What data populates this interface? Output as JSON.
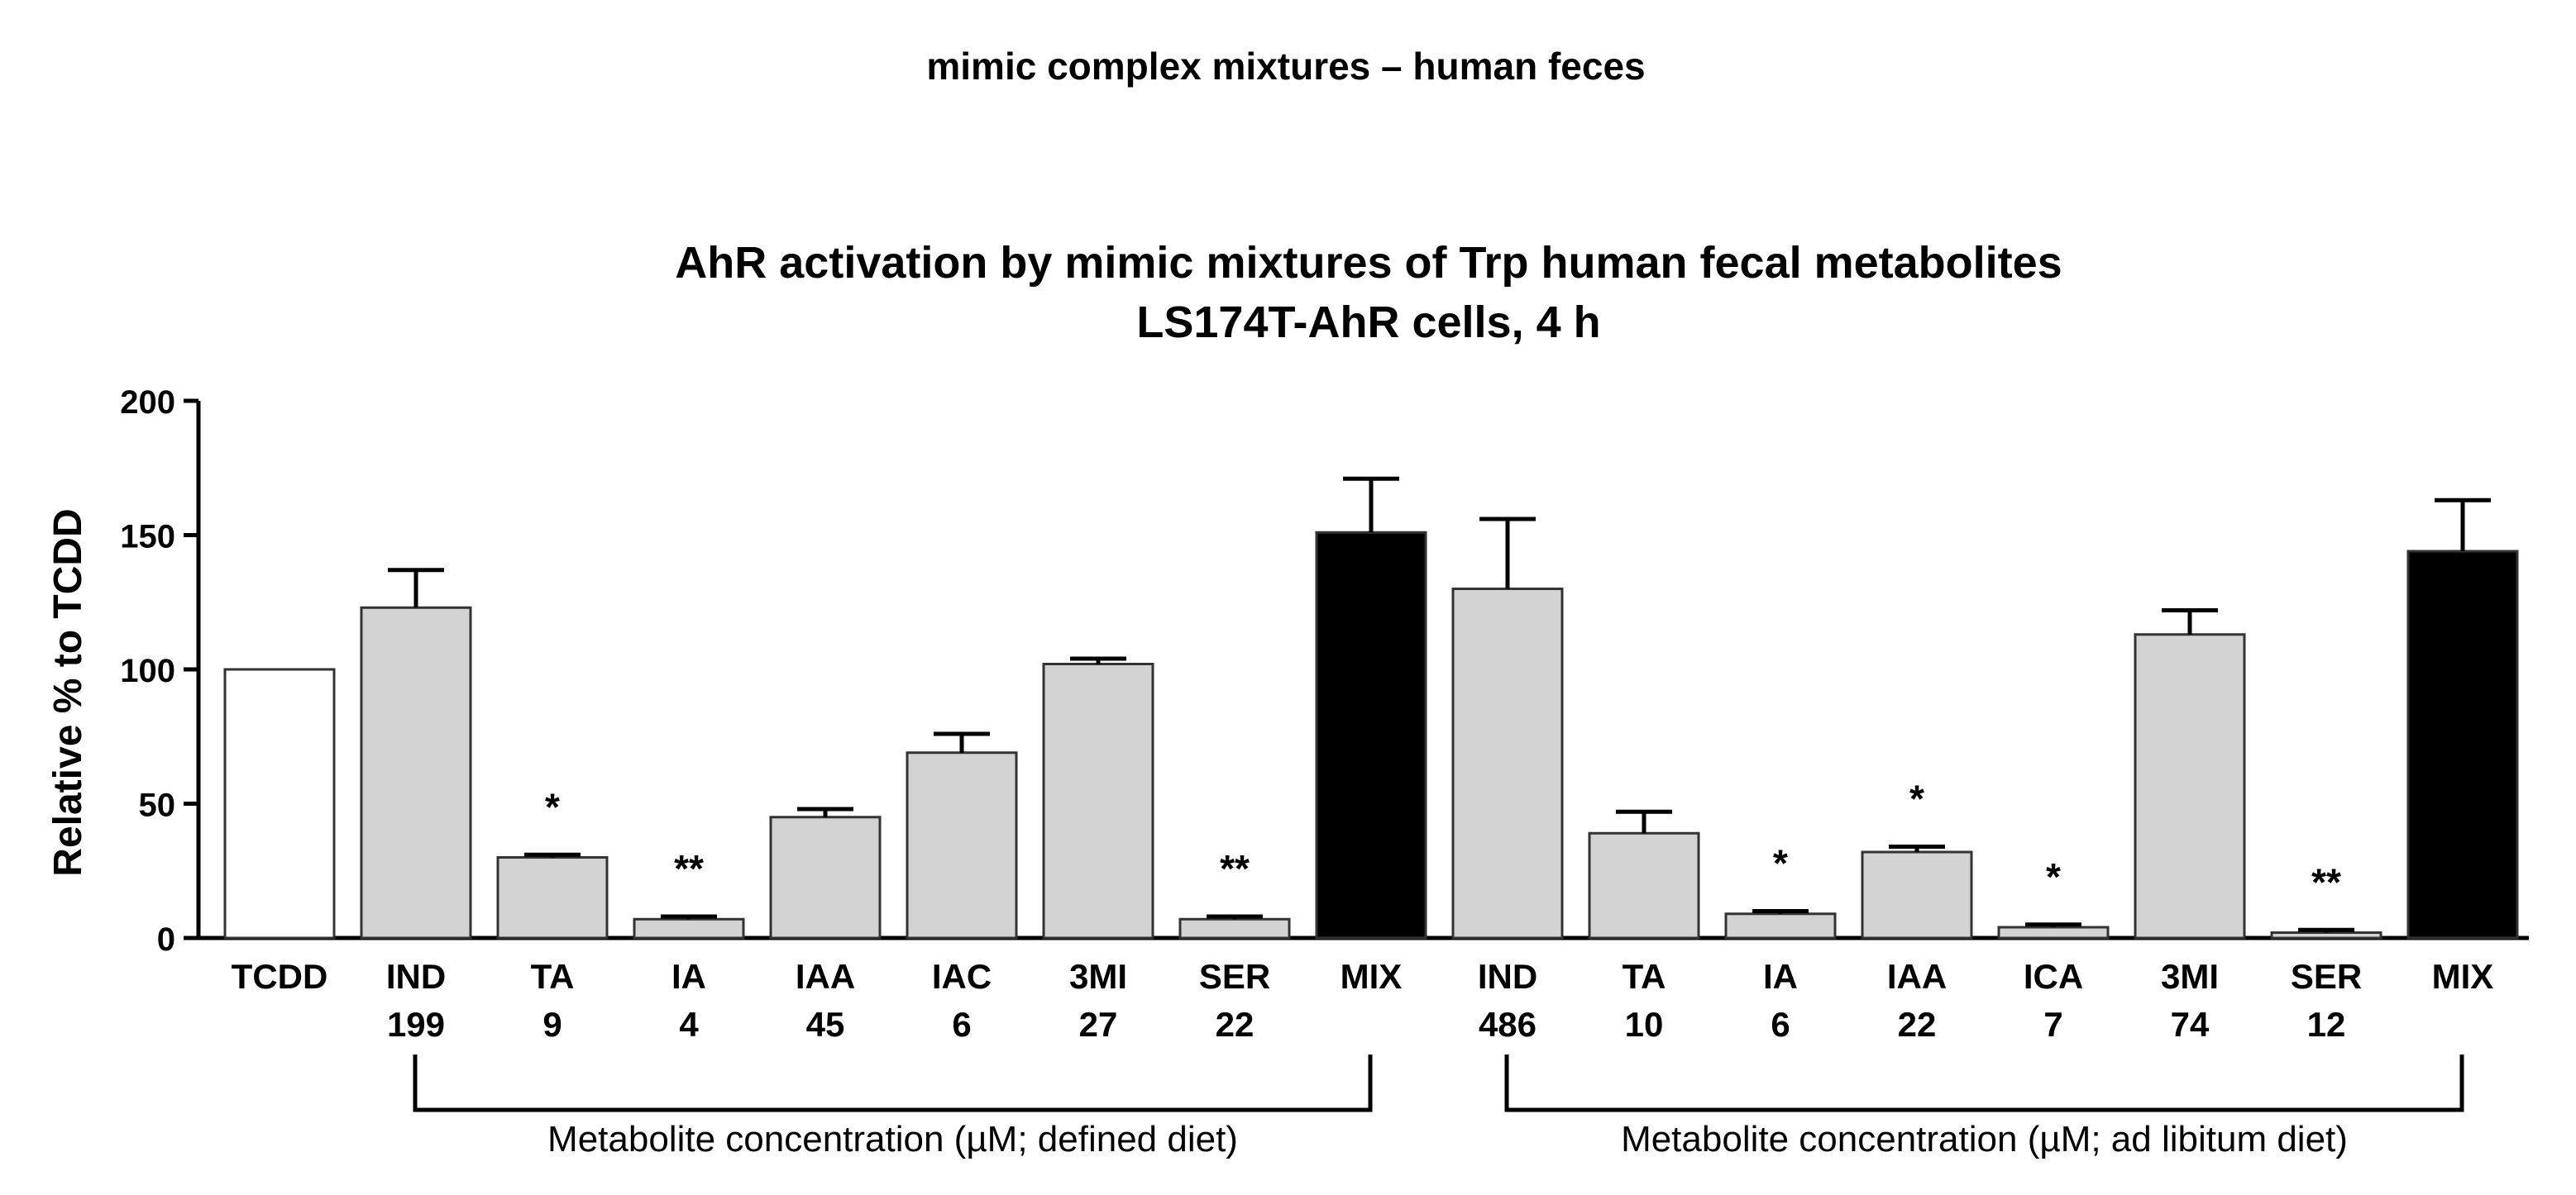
{
  "header": {
    "text": "mimic complex mixtures – human feces"
  },
  "chart_data": {
    "type": "bar",
    "title": "AhR activation by mimic mixtures of Trp human fecal metabolites",
    "subtitle": "LS174T-AhR cells, 4 h",
    "ylabel": "Relative % to TCDD",
    "xlabel": "",
    "ylim": [
      0,
      200
    ],
    "yticks": [
      0,
      50,
      100,
      150,
      200
    ],
    "grid": false,
    "bars": [
      {
        "name": "TCDD",
        "conc": "",
        "value": 100,
        "error": 0,
        "sig": "",
        "style": "white"
      },
      {
        "name": "IND",
        "conc": "199",
        "value": 123,
        "error": 14,
        "sig": "",
        "style": "gray"
      },
      {
        "name": "TA",
        "conc": "9",
        "value": 30,
        "error": 1,
        "sig": "*",
        "style": "gray"
      },
      {
        "name": "IA",
        "conc": "4",
        "value": 7,
        "error": 1,
        "sig": "**",
        "style": "gray"
      },
      {
        "name": "IAA",
        "conc": "45",
        "value": 45,
        "error": 3,
        "sig": "",
        "style": "gray"
      },
      {
        "name": "IAC",
        "conc": "6",
        "value": 69,
        "error": 7,
        "sig": "",
        "style": "gray"
      },
      {
        "name": "3MI",
        "conc": "27",
        "value": 102,
        "error": 2,
        "sig": "",
        "style": "gray"
      },
      {
        "name": "SER",
        "conc": "22",
        "value": 7,
        "error": 1,
        "sig": "**",
        "style": "gray"
      },
      {
        "name": "MIX",
        "conc": "",
        "value": 151,
        "error": 20,
        "sig": "",
        "style": "black"
      },
      {
        "name": "IND",
        "conc": "486",
        "value": 130,
        "error": 26,
        "sig": "",
        "style": "gray"
      },
      {
        "name": "TA",
        "conc": "10",
        "value": 39,
        "error": 8,
        "sig": "",
        "style": "gray"
      },
      {
        "name": "IA",
        "conc": "6",
        "value": 9,
        "error": 1,
        "sig": "*",
        "style": "gray"
      },
      {
        "name": "IAA",
        "conc": "22",
        "value": 32,
        "error": 2,
        "sig": "*",
        "style": "gray"
      },
      {
        "name": "ICA",
        "conc": "7",
        "value": 4,
        "error": 1,
        "sig": "*",
        "style": "gray"
      },
      {
        "name": "3MI",
        "conc": "74",
        "value": 113,
        "error": 9,
        "sig": "",
        "style": "gray"
      },
      {
        "name": "SER",
        "conc": "12",
        "value": 2,
        "error": 1,
        "sig": "**",
        "style": "gray"
      },
      {
        "name": "MIX",
        "conc": "",
        "value": 144,
        "error": 19,
        "sig": "",
        "style": "black"
      }
    ],
    "groups": [
      {
        "label": "Metabolite concentration (µM; defined diet)",
        "from": 1,
        "to": 8
      },
      {
        "label": "Metabolite concentration (µM; ad libitum diet)",
        "from": 9,
        "to": 16
      }
    ],
    "colors": {
      "white": "#ffffff",
      "gray": "#d3d3d3",
      "black": "#000000",
      "stroke": "#000000"
    }
  }
}
